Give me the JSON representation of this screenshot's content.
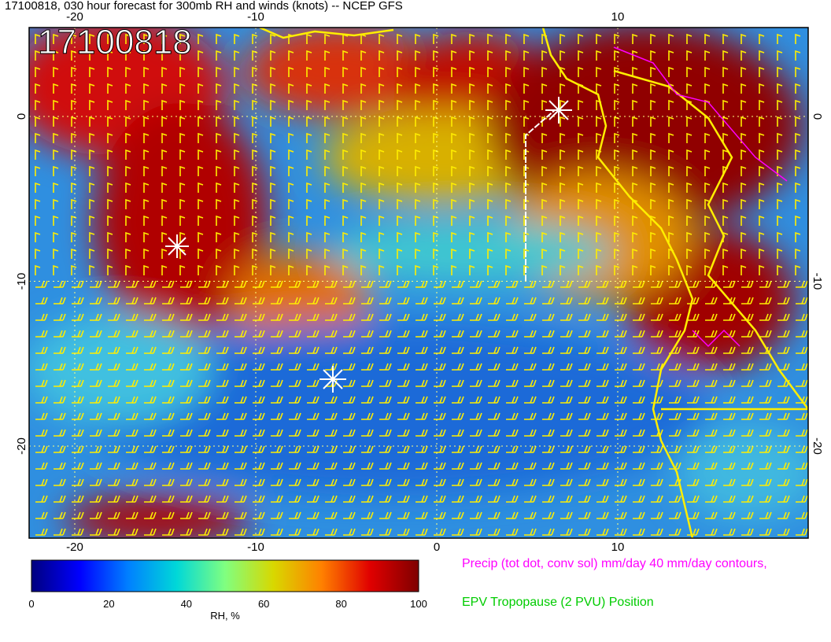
{
  "header": {
    "title": "17100818, 030 hour forecast for 300mb RH and winds (knots) -- NCEP GFS"
  },
  "map": {
    "stamp": "17100818",
    "x_ticks_top": [
      -20,
      -10,
      10
    ],
    "x_ticks_bottom": [
      -20,
      -10,
      0,
      10
    ],
    "y_ticks_left": [
      0,
      -10,
      -20
    ],
    "y_ticks_right": [
      0,
      -10,
      -20
    ]
  },
  "colorbar": {
    "ticks": [
      0,
      20,
      40,
      60,
      80,
      100
    ],
    "label": "RH, %",
    "colors": [
      "#00007f",
      "#0000ff",
      "#0080ff",
      "#00d8d8",
      "#80ff80",
      "#d8d800",
      "#ff8000",
      "#e00000",
      "#7f0000"
    ]
  },
  "legend": {
    "precip": "Precip (tot dot, conv sol) mm/day 40 mm/day contours,",
    "epv": "EPV Tropopause (2 PVU) Position"
  }
}
